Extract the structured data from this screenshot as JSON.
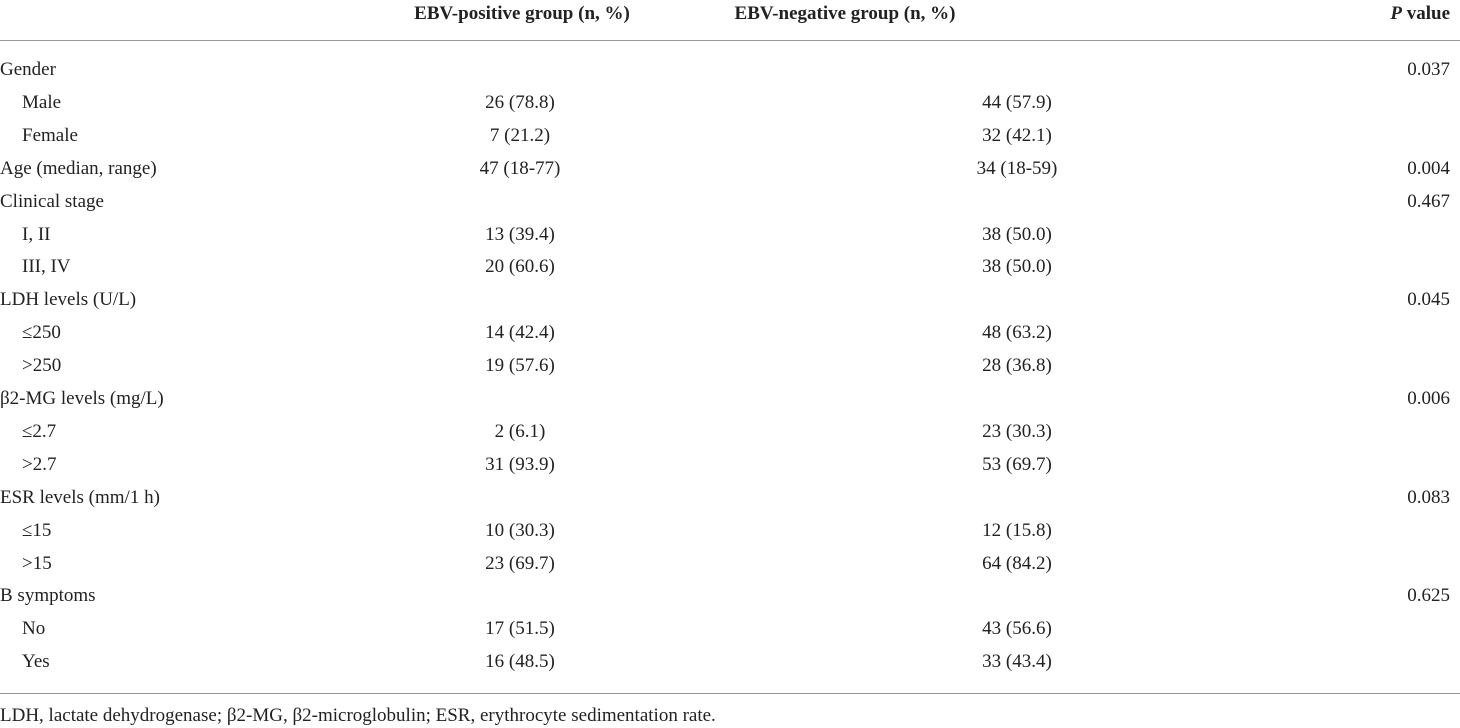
{
  "header": {
    "positive": "EBV-positive group (n, %)",
    "negative": "EBV-negative group (n, %)",
    "p_italic": "P",
    "p_rest": "value"
  },
  "groups": [
    {
      "label": "Gender",
      "p_value": "0.037",
      "items": [
        {
          "label": "Male",
          "positive": "26 (78.8)",
          "negative": "44 (57.9)"
        },
        {
          "label": "Female",
          "positive": "7 (21.2)",
          "negative": "32 (42.1)"
        }
      ]
    },
    {
      "label": "Age (median, range)",
      "positive": "47 (18-77)",
      "negative": "34 (18-59)",
      "p_value": "0.004"
    },
    {
      "label": "Clinical stage",
      "p_value": "0.467",
      "items": [
        {
          "label": "I, II",
          "positive": "13 (39.4)",
          "negative": "38 (50.0)"
        },
        {
          "label": "III, IV",
          "positive": "20 (60.6)",
          "negative": "38 (50.0)"
        }
      ]
    },
    {
      "label": "LDH levels (U/L)",
      "p_value": "0.045",
      "items": [
        {
          "label": "≤250",
          "positive": "14 (42.4)",
          "negative": "48 (63.2)"
        },
        {
          "label": ">250",
          "positive": "19 (57.6)",
          "negative": "28 (36.8)"
        }
      ]
    },
    {
      "label": "β2-MG levels (mg/L)",
      "p_value": "0.006",
      "items": [
        {
          "label": "≤2.7",
          "positive": "2 (6.1)",
          "negative": "23 (30.3)"
        },
        {
          "label": ">2.7",
          "positive": "31 (93.9)",
          "negative": "53 (69.7)"
        }
      ]
    },
    {
      "label": "ESR levels (mm/1 h)",
      "p_value": "0.083",
      "items": [
        {
          "label": "≤15",
          "positive": "10 (30.3)",
          "negative": "12 (15.8)"
        },
        {
          "label": ">15",
          "positive": "23 (69.7)",
          "negative": "64 (84.2)"
        }
      ]
    },
    {
      "label": "B symptoms",
      "p_value": "0.625",
      "items": [
        {
          "label": "No",
          "positive": "17 (51.5)",
          "negative": "43 (56.6)"
        },
        {
          "label": "Yes",
          "positive": "16 (48.5)",
          "negative": "33 (43.4)"
        }
      ]
    }
  ],
  "footnote": "LDH, lactate dehydrogenase; β2-MG, β2-microglobulin; ESR, erythrocyte sedimentation rate."
}
